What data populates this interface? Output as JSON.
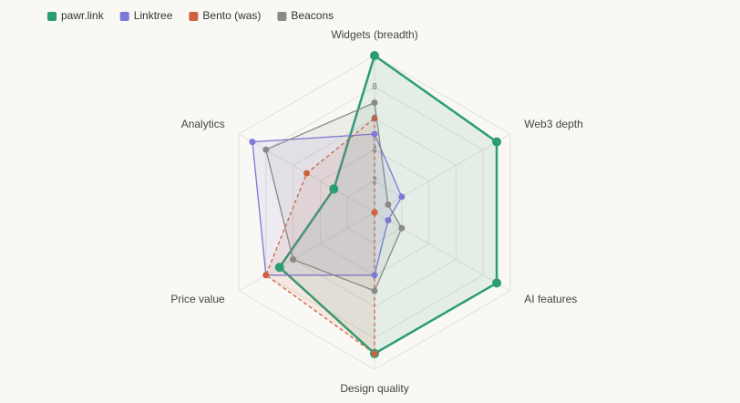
{
  "chart_data": {
    "type": "radar",
    "categories": [
      "Widgets (breadth)",
      "Web3 depth",
      "AI features",
      "Design quality",
      "Price value",
      "Analytics"
    ],
    "ylim": [
      0,
      10
    ],
    "yticks": [
      2,
      4,
      6,
      8
    ],
    "grid": true,
    "series": [
      {
        "name": "pawr.link",
        "color": "#2a9d73",
        "dashed": false,
        "values": [
          10,
          9,
          9,
          9,
          7,
          3
        ]
      },
      {
        "name": "Linktree",
        "color": "#7b78d6",
        "dashed": false,
        "values": [
          5,
          2,
          1,
          4,
          8,
          9
        ]
      },
      {
        "name": "Bento (was)",
        "color": "#d0603e",
        "dashed": true,
        "values": [
          6,
          0,
          0,
          9,
          8,
          5
        ]
      },
      {
        "name": "Beacons",
        "color": "#8a8a85",
        "dashed": false,
        "values": [
          7,
          1,
          2,
          5,
          6,
          8
        ]
      }
    ]
  }
}
